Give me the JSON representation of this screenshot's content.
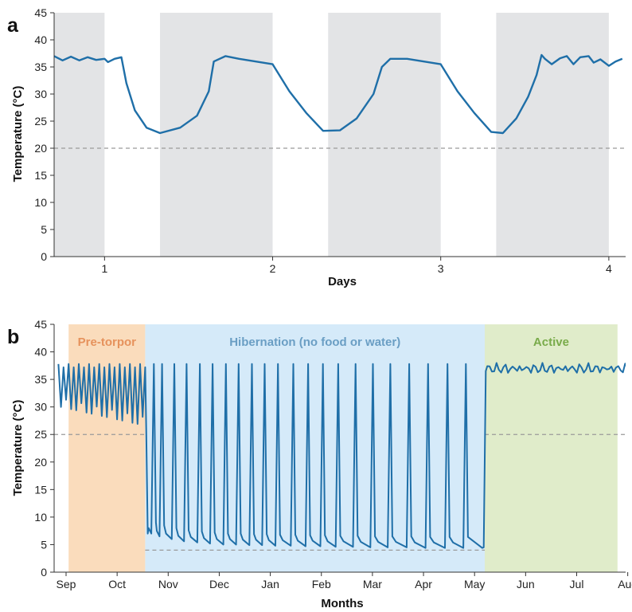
{
  "chart_data": [
    {
      "panel": "a",
      "type": "line",
      "xlabel": "Days",
      "ylabel": "Temperature (°C)",
      "xlim": [
        0.7,
        4.1
      ],
      "ylim": [
        0,
        45
      ],
      "xticks": [
        1,
        2,
        3,
        4
      ],
      "yticks": [
        0,
        5,
        10,
        15,
        20,
        25,
        30,
        35,
        40,
        45
      ],
      "reference_line": {
        "y": 20,
        "style": "dashed"
      },
      "shaded_bands": [
        [
          0.7,
          1.0
        ],
        [
          1.33,
          2.0
        ],
        [
          2.33,
          3.0
        ],
        [
          3.33,
          4.0
        ]
      ],
      "series": [
        {
          "x": [
            0.7,
            0.75,
            0.8,
            0.85,
            0.9,
            0.95,
            1.0,
            1.02,
            1.06,
            1.1,
            1.13,
            1.18,
            1.25,
            1.33,
            1.45,
            1.55,
            1.62,
            1.65,
            1.72,
            1.8,
            1.9,
            2.0,
            2.1,
            2.2,
            2.3,
            2.4,
            2.5,
            2.6,
            2.65,
            2.7,
            2.8,
            2.9,
            3.0,
            3.1,
            3.2,
            3.3,
            3.37,
            3.45,
            3.52,
            3.57,
            3.6,
            3.62,
            3.66,
            3.71,
            3.75,
            3.79,
            3.83,
            3.88,
            3.91,
            3.95,
            4.0,
            4.04,
            4.08
          ],
          "y": [
            37.0,
            36.2,
            36.9,
            36.2,
            36.8,
            36.3,
            36.5,
            35.9,
            36.5,
            36.8,
            32.0,
            27.0,
            23.8,
            22.8,
            23.8,
            26.0,
            30.5,
            36.0,
            37.0,
            36.5,
            36.0,
            35.5,
            30.5,
            26.5,
            23.2,
            23.3,
            25.5,
            30.0,
            35.0,
            36.5,
            36.5,
            36.0,
            35.5,
            30.5,
            26.5,
            23.0,
            22.8,
            25.5,
            29.5,
            33.5,
            37.2,
            36.5,
            35.5,
            36.6,
            37.0,
            35.5,
            36.8,
            37.0,
            35.8,
            36.4,
            35.2,
            36.0,
            36.5
          ]
        }
      ]
    },
    {
      "panel": "b",
      "type": "line",
      "xlabel": "Months",
      "ylabel": "Temperature (°C)",
      "categories": [
        "Sep",
        "Oct",
        "Nov",
        "Dec",
        "Jan",
        "Feb",
        "Mar",
        "Apr",
        "May",
        "Jun",
        "Jul",
        "Aug"
      ],
      "ylim": [
        0,
        45
      ],
      "yticks": [
        0,
        5,
        10,
        15,
        20,
        25,
        30,
        35,
        40,
        45
      ],
      "regions": [
        {
          "label": "Pre-torpor",
          "from": 0.05,
          "to": 1.55,
          "color": "#fadcbc",
          "label_color": "#e6925c"
        },
        {
          "label": "Hibernation (no food or water)",
          "from": 1.55,
          "to": 8.2,
          "color": "#d5eaf9",
          "label_color": "#6a9ec4"
        },
        {
          "label": "Active",
          "from": 8.2,
          "to": 10.8,
          "color": "#e0ecca",
          "label_color": "#79ab4a"
        }
      ],
      "reference_lines": [
        {
          "y": 25,
          "from": -0.3,
          "to": 1.55,
          "style": "dashed"
        },
        {
          "y": 4,
          "from": 1.55,
          "to": 8.2,
          "style": "dashed"
        },
        {
          "y": 25,
          "from": 8.2,
          "to": 11.0,
          "style": "dashed"
        }
      ],
      "pre_torpor": {
        "x_start": -0.15,
        "x_end": 1.55,
        "high": 37.8,
        "low_start": 30.0,
        "low_end": 26.5,
        "cycles": 17
      },
      "hibernation": {
        "arousal_x": [
          1.72,
          1.88,
          2.12,
          2.36,
          2.62,
          2.87,
          3.13,
          3.38,
          3.64,
          3.89,
          4.15,
          4.45,
          4.74,
          5.03,
          5.33,
          5.67,
          6.01,
          6.35,
          6.72,
          7.09,
          7.47,
          7.83
        ],
        "peak": 37.8,
        "troughs": [
          7.0,
          6.5,
          6.0,
          5.6,
          5.4,
          5.2,
          5.0,
          5.0,
          4.9,
          4.9,
          4.8,
          4.8,
          4.7,
          4.7,
          4.6,
          4.6,
          4.5,
          4.5,
          4.5,
          4.4,
          4.4,
          4.4
        ]
      },
      "active": {
        "x_start": 8.2,
        "x_end": 11.1,
        "mean": 37.0,
        "amplitude": 0.6
      }
    }
  ]
}
